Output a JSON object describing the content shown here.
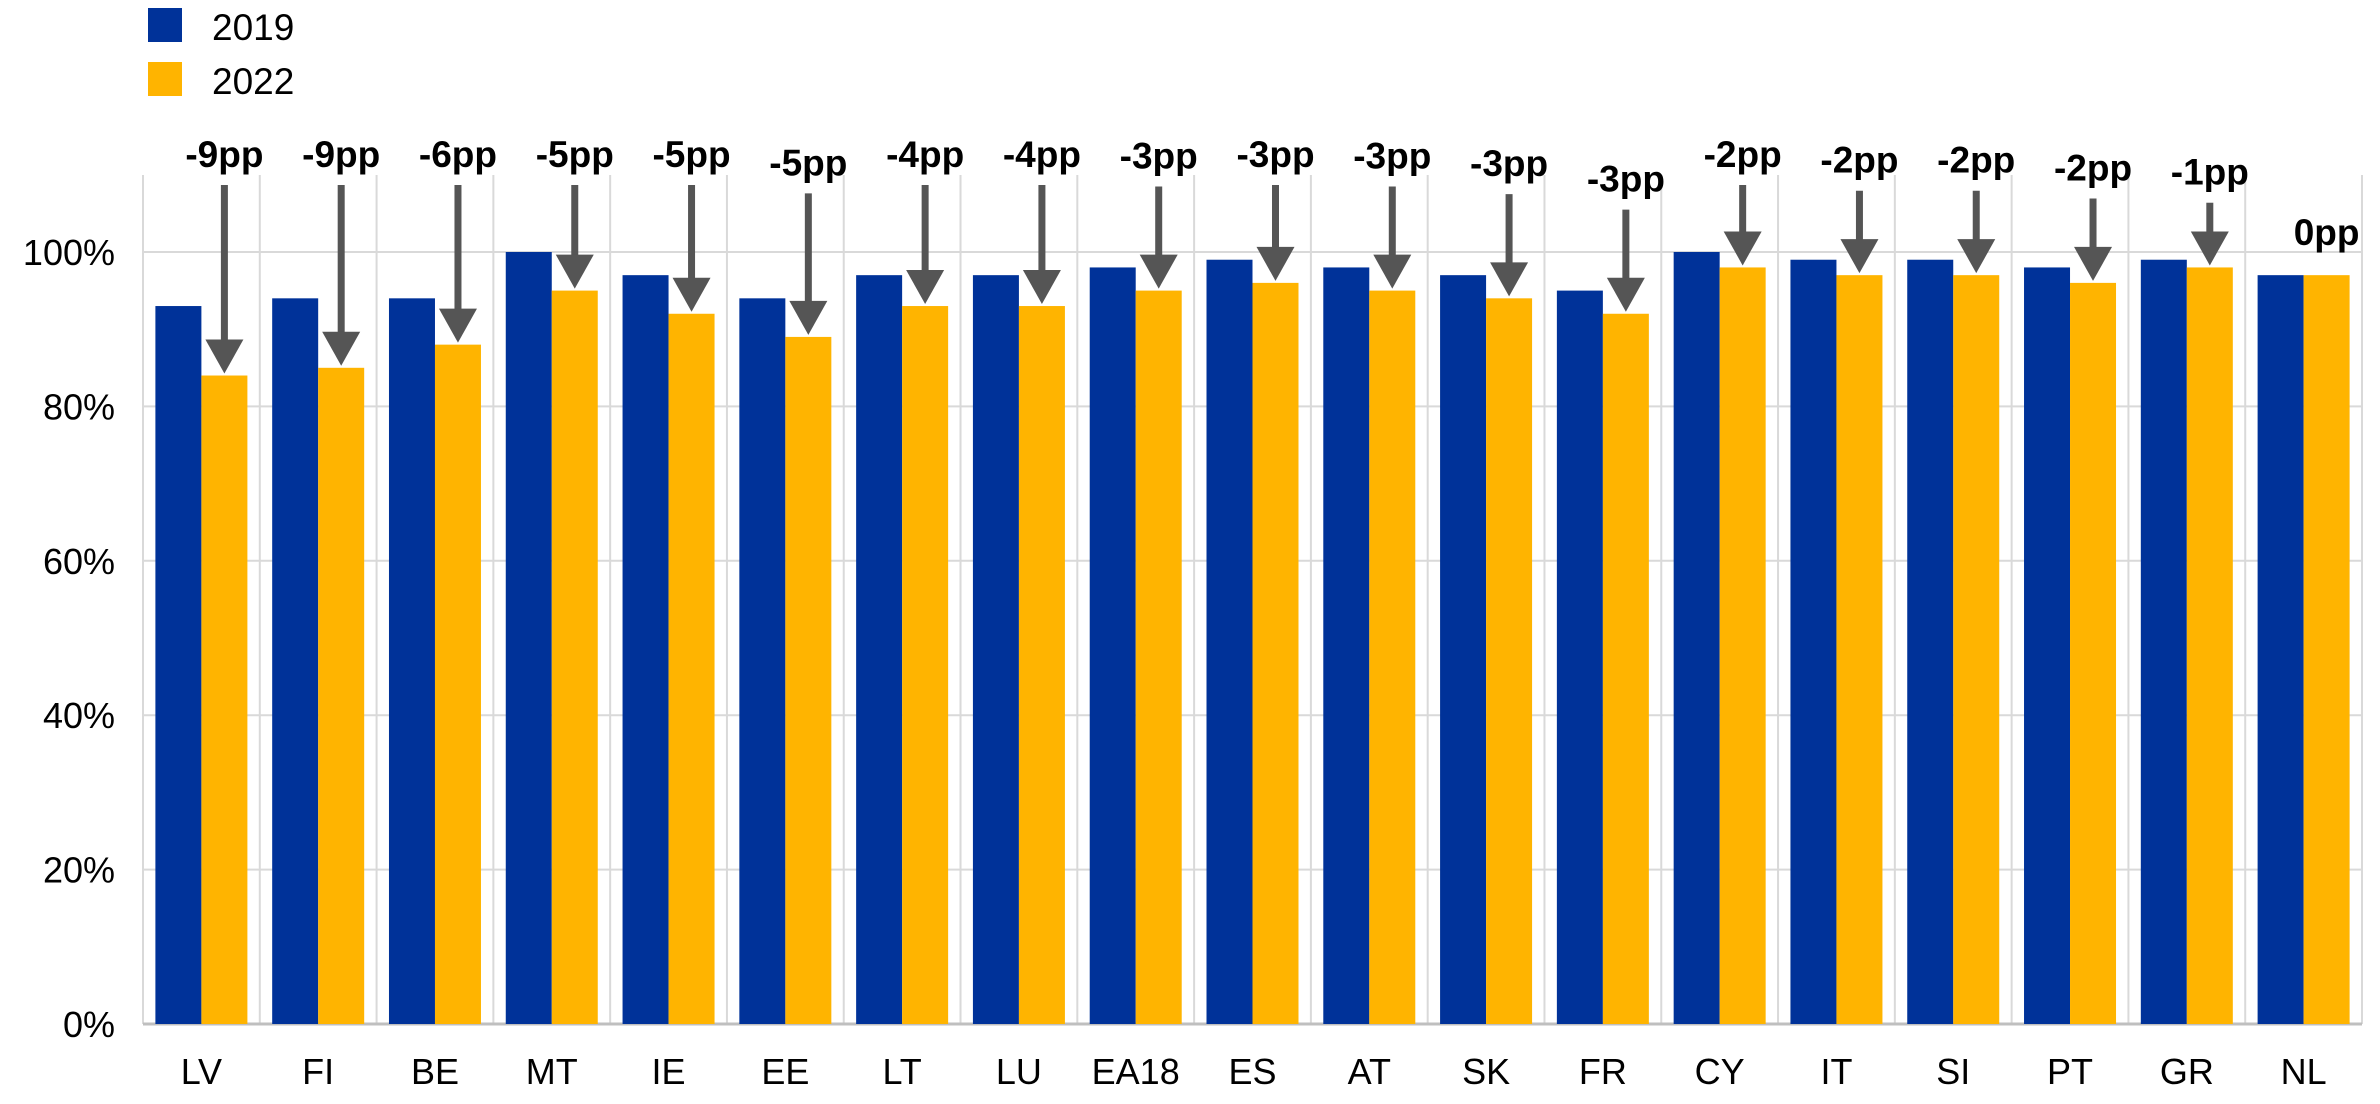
{
  "chart_data": {
    "type": "bar",
    "categories": [
      "LV",
      "FI",
      "BE",
      "MT",
      "IE",
      "EE",
      "LT",
      "LU",
      "EA18",
      "ES",
      "AT",
      "SK",
      "FR",
      "CY",
      "IT",
      "SI",
      "PT",
      "GR",
      "NL"
    ],
    "series": [
      {
        "name": "2019",
        "color": "#003299",
        "values": [
          93,
          94,
          94,
          100,
          97,
          94,
          97,
          97,
          98,
          99,
          98,
          97,
          95,
          100,
          99,
          99,
          98,
          99,
          97
        ]
      },
      {
        "name": "2022",
        "color": "#FFB400",
        "values": [
          84,
          85,
          88,
          95,
          92,
          89,
          93,
          93,
          95,
          96,
          95,
          94,
          92,
          98,
          97,
          97,
          96,
          98,
          97
        ]
      }
    ],
    "annotations": [
      "-9pp",
      "-9pp",
      "-6pp",
      "-5pp",
      "-5pp",
      "-5pp",
      "-4pp",
      "-4pp",
      "-3pp",
      "-3pp",
      "-3pp",
      "-3pp",
      "-3pp",
      "-2pp",
      "-2pp",
      "-2pp",
      "-2pp",
      "-1pp",
      "0pp"
    ],
    "y_ticks": [
      "0%",
      "20%",
      "40%",
      "60%",
      "80%",
      "100%"
    ],
    "ylim": [
      0,
      110
    ],
    "grid": true,
    "legend_position": "top-left",
    "arrow_color": "#555555"
  }
}
